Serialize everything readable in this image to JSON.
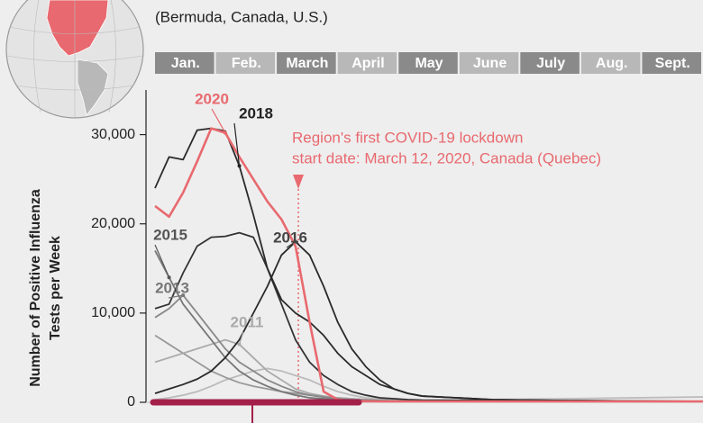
{
  "chart_data": {
    "type": "line",
    "subtitle": "(Bermuda, Canada, U.S.)",
    "months": [
      "Jan.",
      "Feb.",
      "March",
      "April",
      "May",
      "June",
      "July",
      "Aug.",
      "Sept."
    ],
    "ylabel": [
      "Number of Positive Influenza",
      "Tests per Week"
    ],
    "annotation": [
      "Region's first COVID-19 lockdown",
      "start date: March 12, 2020, Canada (Quebec)"
    ],
    "x": [
      1,
      2,
      3,
      4,
      5,
      6,
      7,
      8,
      9,
      10,
      11,
      12,
      13,
      14,
      15,
      16,
      17,
      18,
      19,
      20,
      25,
      30,
      35,
      40
    ],
    "xlim": [
      1,
      40
    ],
    "ylim": [
      0,
      35000
    ],
    "yticks": [
      0,
      {
        "value": 10000,
        "label": "10,000"
      },
      {
        "value": 20000,
        "label": "20,000"
      },
      {
        "value": 30000,
        "label": "30,000"
      }
    ],
    "series": [
      {
        "color": "#bbbbbb",
        "values": [
          300,
          500,
          800,
          1200,
          1800,
          2500,
          3000,
          3500,
          3800,
          3500,
          3000,
          2500,
          1800,
          1200,
          800,
          500,
          400,
          300,
          250,
          200,
          300,
          400,
          500,
          600
        ]
      },
      {
        "color": "#999999",
        "values": [
          7500,
          6500,
          5500,
          4500,
          3500,
          2800,
          2200,
          1800,
          1500,
          1200,
          1000,
          800,
          600,
          500,
          400,
          300,
          250,
          200,
          150,
          150,
          100,
          100,
          100,
          100
        ]
      },
      {
        "name": "2011",
        "color": "#aaaaaa",
        "values": [
          4500,
          5000,
          5500,
          6000,
          6500,
          7000,
          6500,
          5000,
          3500,
          2500,
          1500,
          1000,
          700,
          500,
          400,
          300,
          250,
          200,
          150,
          150,
          100,
          100,
          100,
          100
        ]
      },
      {
        "name": "2013",
        "color": "#888888",
        "values": [
          9500,
          10500,
          12000,
          10000,
          8000,
          6000,
          4500,
          3500,
          2500,
          1800,
          1200,
          800,
          600,
          400,
          300,
          250,
          200,
          150,
          150,
          100,
          100,
          100,
          100,
          100
        ]
      },
      {
        "name": "2015",
        "color": "#777777",
        "values": [
          17000,
          14000,
          11000,
          9000,
          7000,
          5000,
          3500,
          2500,
          1800,
          1200,
          800,
          500,
          400,
          300,
          250,
          200,
          150,
          150,
          100,
          100,
          100,
          100,
          100,
          100
        ]
      },
      {
        "color": "#333333",
        "values": [
          10500,
          11000,
          14500,
          17500,
          18500,
          18600,
          19000,
          18500,
          15000,
          11000,
          7000,
          4500,
          3000,
          2000,
          1200,
          800,
          500,
          400,
          300,
          250,
          200,
          150,
          100,
          100
        ]
      },
      {
        "name": "2016",
        "color": "#2a2a2a",
        "values": [
          1000,
          1500,
          2000,
          2600,
          3500,
          5000,
          7000,
          10000,
          13000,
          16500,
          18000,
          16500,
          13000,
          9000,
          6000,
          4000,
          2500,
          1500,
          1000,
          700,
          300,
          200,
          150,
          100
        ]
      },
      {
        "name": "2018",
        "color": "#2a2a2a",
        "values": [
          24000,
          27500,
          27200,
          30500,
          30700,
          30400,
          26500,
          21000,
          15000,
          11500,
          10000,
          9000,
          7500,
          5500,
          4000,
          3000,
          2000,
          1500,
          1000,
          700,
          300,
          200,
          150,
          100
        ]
      },
      {
        "name": "2020",
        "color": "#e8696f",
        "values": [
          22000,
          20800,
          23500,
          27000,
          30700,
          30200,
          27500,
          25000,
          22500,
          20500,
          17500,
          9000,
          1200,
          300,
          150,
          120,
          100,
          100,
          100,
          100,
          100,
          100,
          100,
          100
        ]
      }
    ]
  }
}
